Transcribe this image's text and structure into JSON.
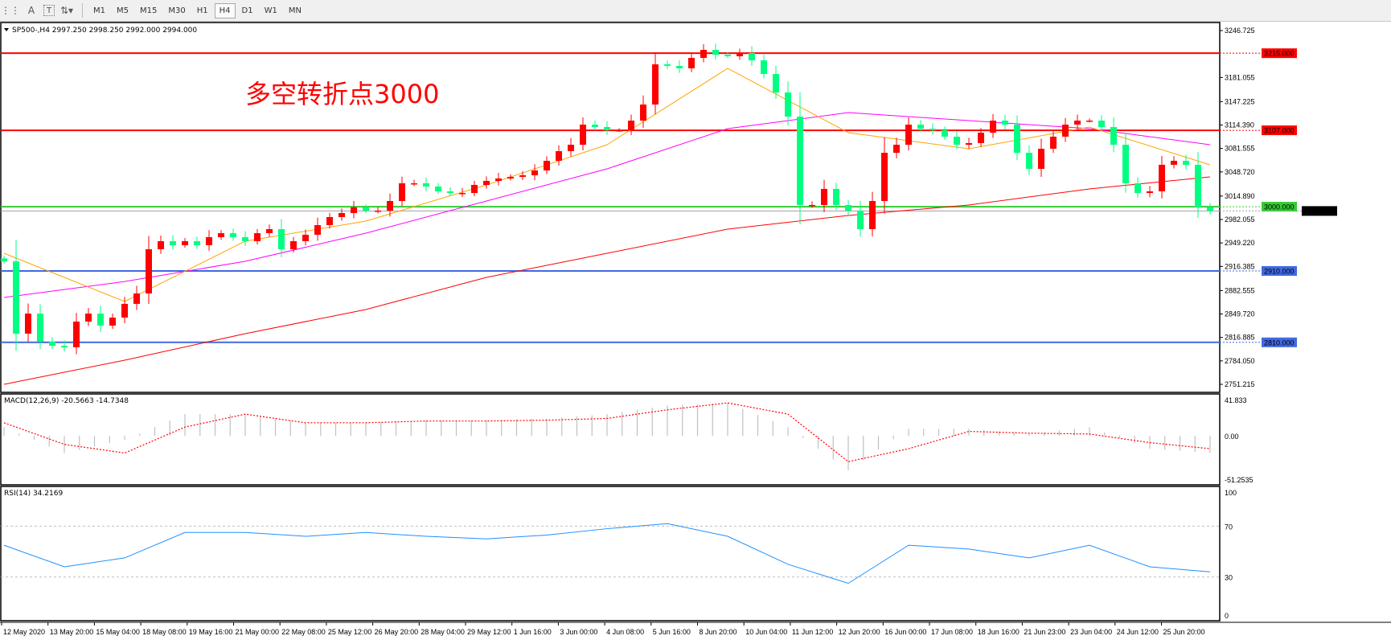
{
  "toolbar": {
    "icons": [
      "grid-icon",
      "text-a-icon",
      "text-label-icon",
      "arrows-icon"
    ],
    "timeframes": [
      "M1",
      "M5",
      "M15",
      "M30",
      "H1",
      "H4",
      "D1",
      "W1",
      "MN"
    ],
    "active_timeframe": "H4"
  },
  "chart_data": {
    "type": "candlestick",
    "symbol_header": "SP500-,H4  2997.250 2998.250 2992.000 2994.000",
    "annotation": "多空转折点3000",
    "colors": {
      "bull": "#ff0000",
      "bear": "#00ff80",
      "ma_fast": "#ffa500",
      "ma_mid": "#ff00ff",
      "ma_slow": "#ff0000",
      "macd_hist": "#c0c0c0",
      "macd_signal": "#ff0000",
      "rsi": "#1e90ff"
    },
    "ylim": [
      2751.215,
      3246.725
    ],
    "y_ticks": [
      "3246.725",
      "3181.055",
      "3147.225",
      "3114.390",
      "3081.555",
      "3048.720",
      "3014.890",
      "2982.055",
      "2949.220",
      "2916.385",
      "2882.555",
      "2849.720",
      "2816.885",
      "2784.050",
      "2751.215"
    ],
    "x_ticks": [
      "12 May 2020",
      "13 May 20:00",
      "15 May 04:00",
      "18 May 08:00",
      "19 May 16:00",
      "21 May 00:00",
      "22 May 08:00",
      "25 May 12:00",
      "26 May 20:00",
      "28 May 04:00",
      "29 May 12:00",
      "1 Jun 16:00",
      "3 Jun 00:00",
      "4 Jun 08:00",
      "5 Jun 16:00",
      "8 Jun 20:00",
      "10 Jun 04:00",
      "11 Jun 12:00",
      "12 Jun 20:00",
      "16 Jun 00:00",
      "17 Jun 08:00",
      "18 Jun 16:00",
      "21 Jun 23:00",
      "23 Jun 04:00",
      "24 Jun 12:00",
      "25 Jun 20:00"
    ],
    "closes": [
      2923.5,
      2822.2,
      2850.3,
      2810.9,
      2805.3,
      2803.1,
      2839.1,
      2850.3,
      2833.5,
      2844.7,
      2863.9,
      2878.5,
      2940.4,
      2951.7,
      2946.1,
      2951.7,
      2946.1,
      2957.3,
      2962.9,
      2957.3,
      2951.7,
      2962.9,
      2968.6,
      2940.4,
      2951.7,
      2960.7,
      2974.2,
      2985.5,
      2991.1,
      2999.0,
      2994.5,
      2994.5,
      3008.0,
      3032.8,
      3032.8,
      3028.3,
      3021.5,
      3019.2,
      3019.2,
      3030.5,
      3036.1,
      3039.5,
      3041.8,
      3044.0,
      3050.8,
      3064.3,
      3077.8,
      3086.8,
      3115.0,
      3111.6,
      3107.1,
      3107.1,
      3120.6,
      3143.1,
      3199.4,
      3197.2,
      3193.8,
      3208.4,
      3219.7,
      3212.9,
      3210.7,
      3215.2,
      3205.0,
      3185.9,
      3160.0,
      3126.2,
      3002.4,
      3002.4,
      3024.9,
      3002.4,
      2994.5,
      2968.6,
      3008.0,
      3075.5,
      3086.8,
      3115.0,
      3109.3,
      3107.1,
      3098.1,
      3086.8,
      3089.1,
      3103.7,
      3120.6,
      3115.0,
      3075.5,
      3053.0,
      3081.2,
      3098.1,
      3115.0,
      3120.6,
      3120.6,
      3111.6,
      3086.8,
      3032.8,
      3019.2,
      3021.5,
      3058.7,
      3064.3,
      3058.7,
      2999.0,
      2994.0
    ],
    "ma_fast": [
      2934.8,
      2867.2,
      2951.7,
      2979.8,
      3030.5,
      3086.8,
      3193.8,
      3103.7,
      3081.2,
      3111.6,
      3058.7
    ],
    "ma_mid": [
      2872.9,
      2895.2,
      2923.5,
      2962.9,
      3008.0,
      3053.0,
      3109.3,
      3131.8,
      3120.6,
      3109.3,
      3086.8
    ],
    "ma_slow": [
      2751.2,
      2785.0,
      2822.2,
      2856.0,
      2901.0,
      2934.8,
      2968.6,
      2987.7,
      3002.4,
      3024.9,
      3041.8
    ],
    "levels": [
      {
        "label": "3215.000",
        "value": 3215.0,
        "color": "#ff0000"
      },
      {
        "label": "3107.000",
        "value": 3107.0,
        "color": "#ff0000"
      },
      {
        "label": "3000.000",
        "value": 3000.0,
        "color": "#32cd32"
      },
      {
        "label": "2994.000",
        "value": 2994.0,
        "color": "#000000",
        "line": "#a0a0a0"
      },
      {
        "label": "2910.000",
        "value": 2910.0,
        "color": "#4169e1"
      },
      {
        "label": "2810.000",
        "value": 2810.0,
        "color": "#4169e1"
      }
    ],
    "macd": {
      "header": "MACD(12,26,9) -20.5663 -14.7348",
      "ylim": [
        -51.2535,
        41.833
      ],
      "ticks": [
        "41.833",
        "0.00",
        "-51.2535"
      ],
      "histogram": [
        10,
        -20,
        -5,
        25,
        25,
        15,
        15,
        18,
        18,
        20,
        25,
        35,
        38,
        10,
        -40,
        8,
        8,
        2,
        10,
        -15,
        -20
      ],
      "signal": [
        15,
        -10,
        -20,
        10,
        25,
        15,
        15,
        17,
        17,
        18,
        20,
        30,
        38,
        25,
        -30,
        -15,
        5,
        3,
        2,
        -8,
        -15
      ]
    },
    "rsi": {
      "header": "RSI(14) 34.2169",
      "ylim": [
        0,
        100
      ],
      "ticks": [
        "100",
        "70",
        "30",
        "0"
      ],
      "levels": [
        70,
        30
      ],
      "values": [
        55,
        38,
        45,
        65,
        65,
        62,
        65,
        62,
        60,
        63,
        68,
        72,
        62,
        40,
        25,
        55,
        52,
        45,
        55,
        38,
        34
      ]
    }
  }
}
